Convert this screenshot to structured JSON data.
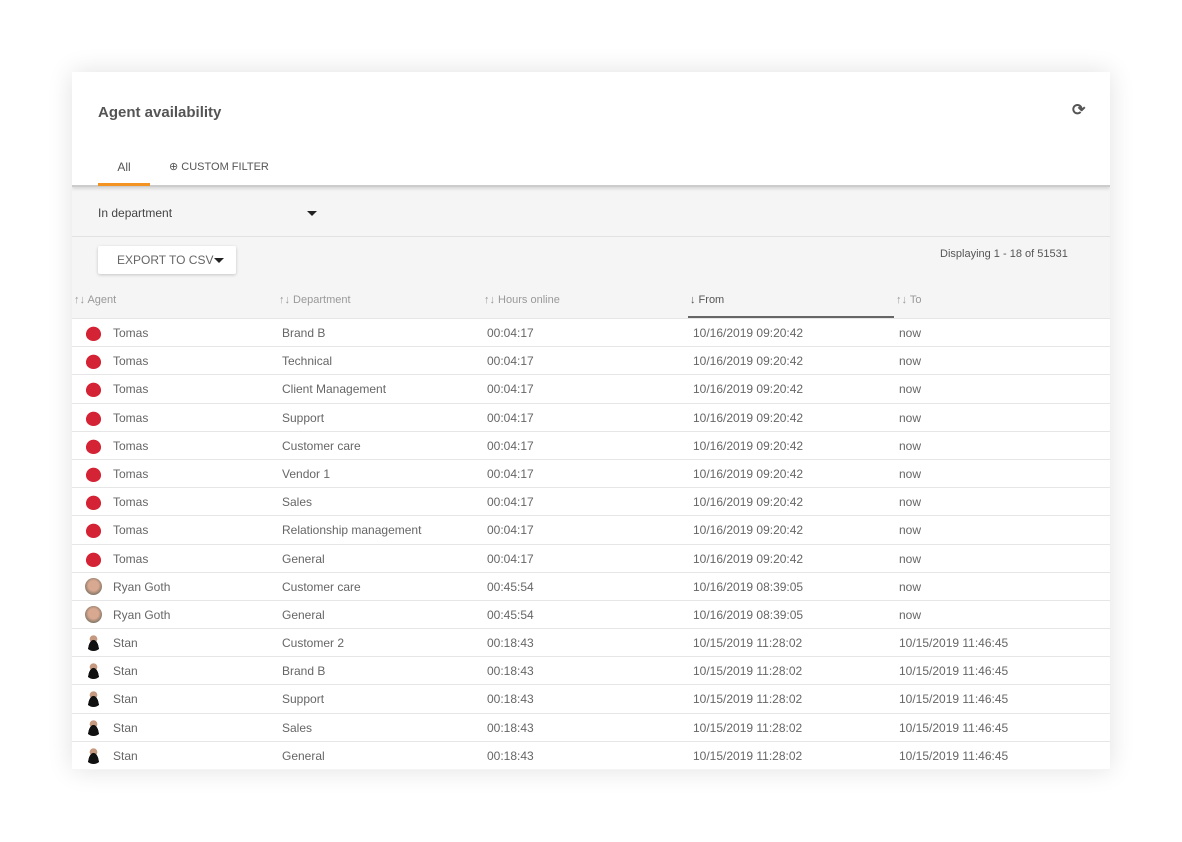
{
  "header": {
    "title": "Agent availability",
    "refresh_icon": "refresh-icon"
  },
  "tabs": [
    {
      "label": "All",
      "active": true
    },
    {
      "label": "⊕ CUSTOM FILTER"
    }
  ],
  "filter": {
    "label": "In department"
  },
  "export_label": "EXPORT TO CSV",
  "displaying": "Displaying 1 - 18 of 51531",
  "accent": "#f39321",
  "columns": [
    {
      "label": "↑↓ Agent"
    },
    {
      "label": "↑↓ Department"
    },
    {
      "label": "↑↓ Hours online"
    },
    {
      "label": "↓ From",
      "sorted": true
    },
    {
      "label": "↑↓ To"
    }
  ],
  "rows": [
    {
      "agent": "Tomas",
      "avatar": "cap",
      "department": "Brand B",
      "hours": "00:04:17",
      "from": "10/16/2019 09:20:42",
      "to": "now"
    },
    {
      "agent": "Tomas",
      "avatar": "cap",
      "department": "Technical",
      "hours": "00:04:17",
      "from": "10/16/2019 09:20:42",
      "to": "now"
    },
    {
      "agent": "Tomas",
      "avatar": "cap",
      "department": "Client Management",
      "hours": "00:04:17",
      "from": "10/16/2019 09:20:42",
      "to": "now"
    },
    {
      "agent": "Tomas",
      "avatar": "cap",
      "department": "Support",
      "hours": "00:04:17",
      "from": "10/16/2019 09:20:42",
      "to": "now"
    },
    {
      "agent": "Tomas",
      "avatar": "cap",
      "department": "Customer care",
      "hours": "00:04:17",
      "from": "10/16/2019 09:20:42",
      "to": "now"
    },
    {
      "agent": "Tomas",
      "avatar": "cap",
      "department": "Vendor 1",
      "hours": "00:04:17",
      "from": "10/16/2019 09:20:42",
      "to": "now"
    },
    {
      "agent": "Tomas",
      "avatar": "cap",
      "department": "Sales",
      "hours": "00:04:17",
      "from": "10/16/2019 09:20:42",
      "to": "now"
    },
    {
      "agent": "Tomas",
      "avatar": "cap",
      "department": "Relationship management",
      "hours": "00:04:17",
      "from": "10/16/2019 09:20:42",
      "to": "now"
    },
    {
      "agent": "Tomas",
      "avatar": "cap",
      "department": "General",
      "hours": "00:04:17",
      "from": "10/16/2019 09:20:42",
      "to": "now"
    },
    {
      "agent": "Ryan Goth",
      "avatar": "photo",
      "department": "Customer care",
      "hours": "00:45:54",
      "from": "10/16/2019 08:39:05",
      "to": "now"
    },
    {
      "agent": "Ryan Goth",
      "avatar": "photo",
      "department": "General",
      "hours": "00:45:54",
      "from": "10/16/2019 08:39:05",
      "to": "now"
    },
    {
      "agent": "Stan",
      "avatar": "stan",
      "department": "Customer 2",
      "hours": "00:18:43",
      "from": "10/15/2019 11:28:02",
      "to": "10/15/2019 11:46:45"
    },
    {
      "agent": "Stan",
      "avatar": "stan",
      "department": "Brand B",
      "hours": "00:18:43",
      "from": "10/15/2019 11:28:02",
      "to": "10/15/2019 11:46:45"
    },
    {
      "agent": "Stan",
      "avatar": "stan",
      "department": "Support",
      "hours": "00:18:43",
      "from": "10/15/2019 11:28:02",
      "to": "10/15/2019 11:46:45"
    },
    {
      "agent": "Stan",
      "avatar": "stan",
      "department": "Sales",
      "hours": "00:18:43",
      "from": "10/15/2019 11:28:02",
      "to": "10/15/2019 11:46:45"
    },
    {
      "agent": "Stan",
      "avatar": "stan",
      "department": "General",
      "hours": "00:18:43",
      "from": "10/15/2019 11:28:02",
      "to": "10/15/2019 11:46:45"
    }
  ]
}
